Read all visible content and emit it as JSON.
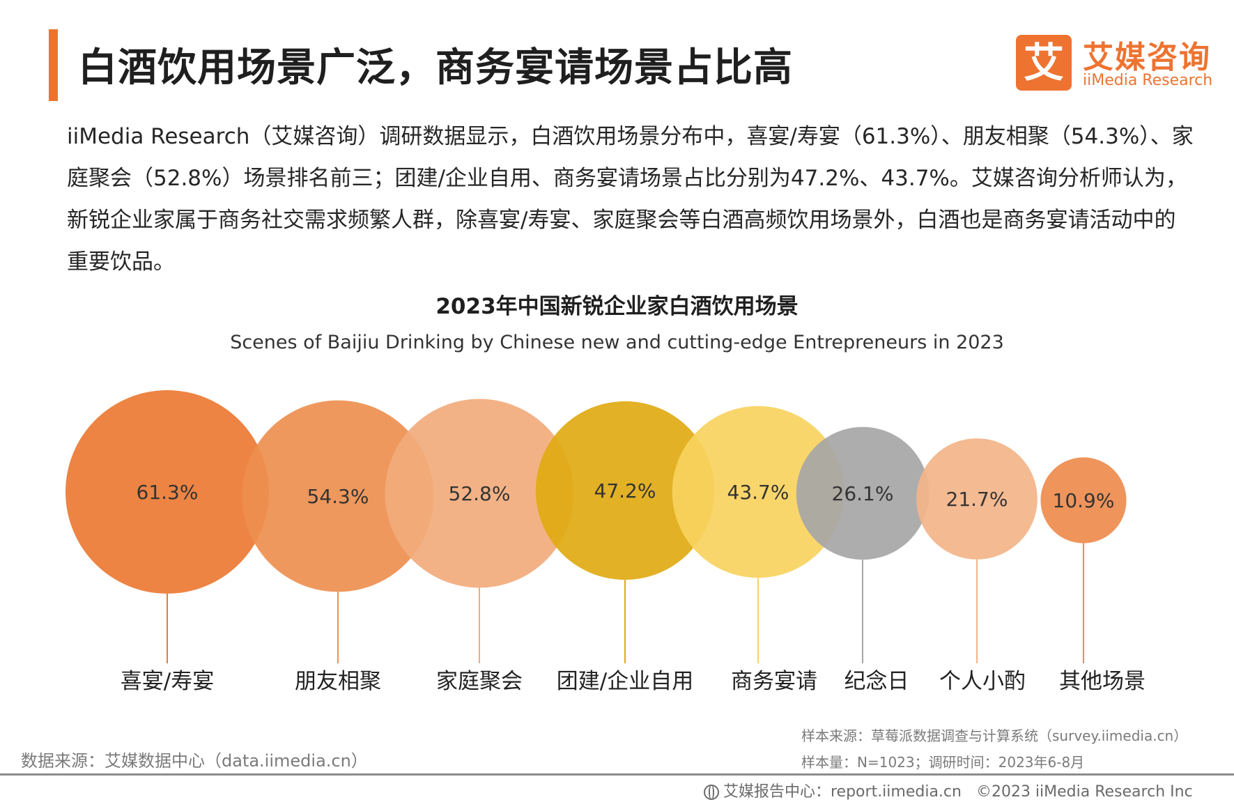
{
  "header": {
    "title": "白酒饮用场景广泛，商务宴请场景占比高",
    "logo_mark": "艾",
    "logo_cn": "艾媒咨询",
    "logo_en": "iiMedia Research"
  },
  "intro_text": "iiMedia Research（艾媒咨询）调研数据显示，白酒饮用场景分布中，喜宴/寿宴（61.3%）、朋友相聚（54.3%）、家庭聚会（52.8%）场景排名前三；团建/企业自用、商务宴请场景占比分别为47.2%、43.7%。艾媒咨询分析师认为，新锐企业家属于商务社交需求频繁人群，除喜宴/寿宴、家庭聚会等白酒高频饮用场景外，白酒也是商务宴请活动中的重要饮品。",
  "chart_data": {
    "type": "bubble",
    "title": "2023年中国新锐企业家白酒饮用场景",
    "subtitle": "Scenes of Baijiu Drinking by Chinese new and cutting-edge Entrepreneurs in 2023",
    "unit": "%",
    "categories": [
      "喜宴/寿宴",
      "朋友相聚",
      "家庭聚会",
      "团建/企业自用",
      "商务宴请",
      "纪念日",
      "个人小酌",
      "其他场景"
    ],
    "values": [
      61.3,
      54.3,
      52.8,
      47.2,
      43.7,
      26.1,
      21.7,
      10.9
    ],
    "data_labels": [
      "61.3%",
      "54.3%",
      "52.8%",
      "47.2%",
      "43.7%",
      "26.1%",
      "21.7%",
      "10.9%"
    ],
    "colors": [
      "#ec7a33",
      "#ee8f4f",
      "#f2ab7c",
      "#dfaa12",
      "#f8d35e",
      "#a6a6a6",
      "#f3b489",
      "#ee8b4d"
    ]
  },
  "sources": {
    "left": "数据来源：艾媒数据中心（data.iimedia.cn）",
    "sample_source": "样本来源：草莓派数据调查与计算系统（survey.iimedia.cn）",
    "sample_size": "样本量：N=1023；调研时间：2023年6-8月"
  },
  "footer": {
    "report_center": "艾媒报告中心：report.iimedia.cn",
    "copyright": "©2023  iiMedia Research  Inc"
  }
}
